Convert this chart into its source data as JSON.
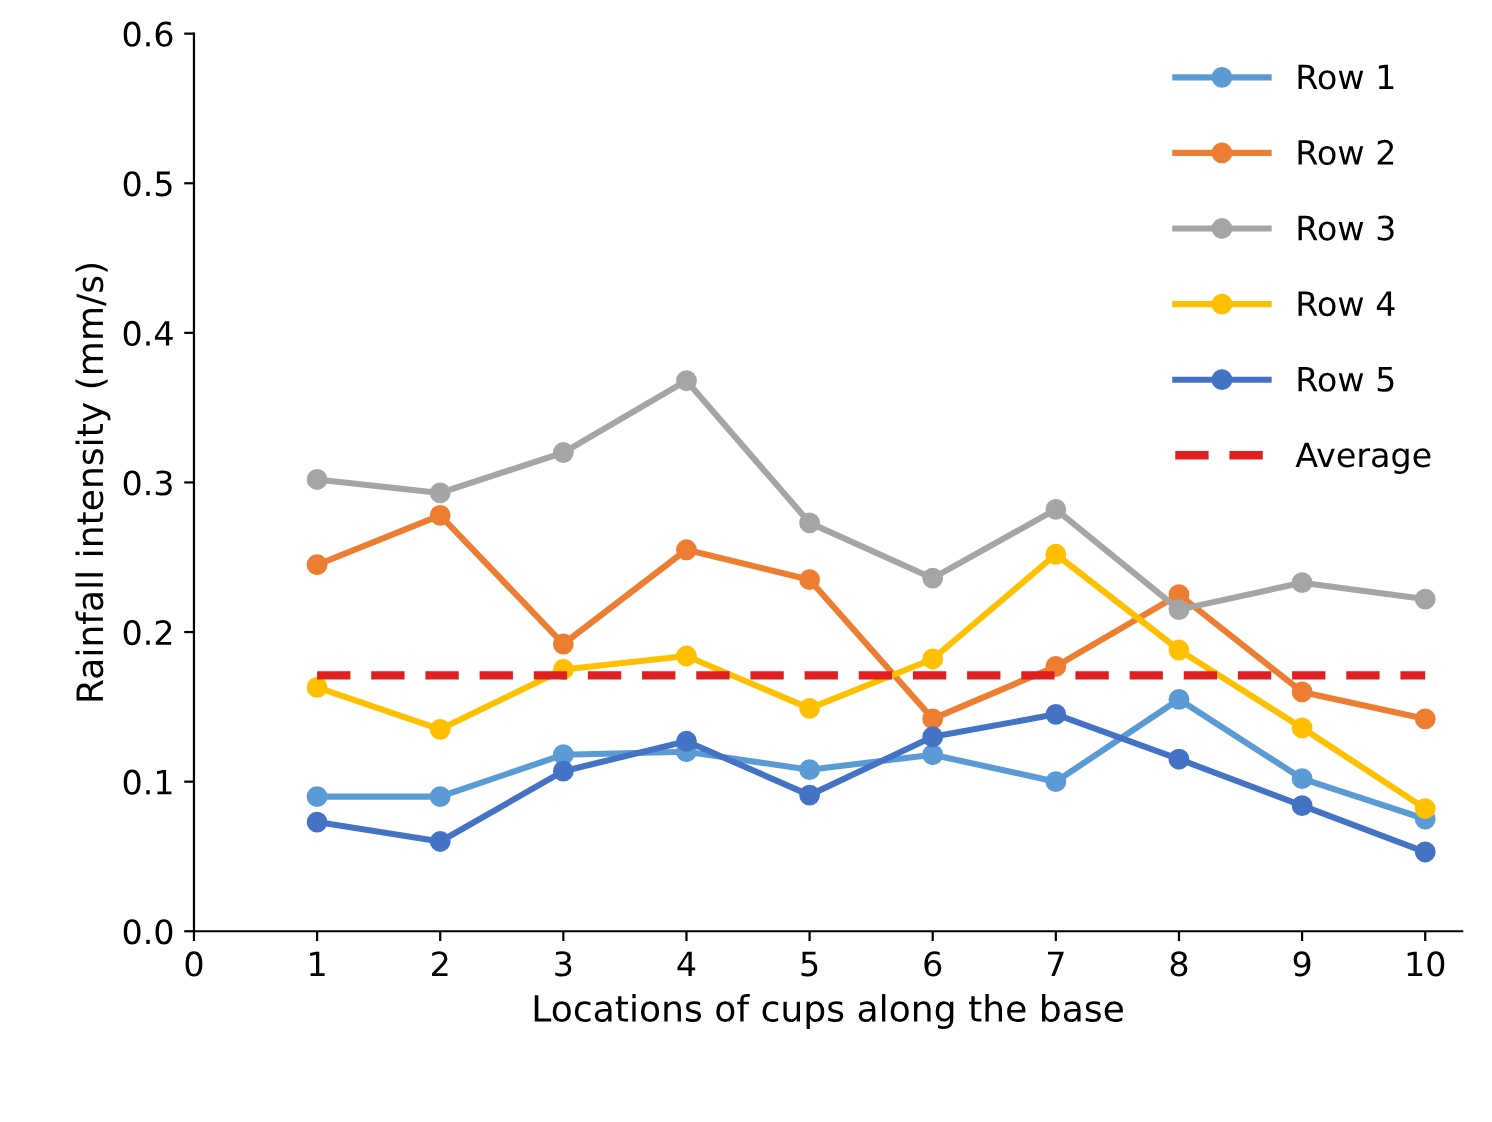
{
  "chart_data": {
    "type": "line",
    "xlabel": "Locations of cups along the base",
    "ylabel": "Rainfall intensity (mm/s)",
    "x": [
      1,
      2,
      3,
      4,
      5,
      6,
      7,
      8,
      9,
      10
    ],
    "series": [
      {
        "name": "Row 1",
        "color": "#5b9bd5",
        "values": [
          0.09,
          0.09,
          0.118,
          0.12,
          0.108,
          0.118,
          0.1,
          0.155,
          0.102,
          0.075
        ]
      },
      {
        "name": "Row 2",
        "color": "#ed7d31",
        "values": [
          0.245,
          0.278,
          0.192,
          0.255,
          0.235,
          0.142,
          0.177,
          0.225,
          0.16,
          0.142
        ]
      },
      {
        "name": "Row 3",
        "color": "#a5a5a5",
        "values": [
          0.302,
          0.293,
          0.32,
          0.368,
          0.273,
          0.236,
          0.282,
          0.215,
          0.233,
          0.222
        ]
      },
      {
        "name": "Row 4",
        "color": "#ffc000",
        "values": [
          0.163,
          0.135,
          0.175,
          0.184,
          0.149,
          0.182,
          0.252,
          0.188,
          0.136,
          0.082
        ]
      },
      {
        "name": "Row 5",
        "color": "#4472c4",
        "values": [
          0.073,
          0.06,
          0.107,
          0.127,
          0.091,
          0.13,
          0.145,
          0.115,
          0.084,
          0.053
        ]
      },
      {
        "name": "Average",
        "color": "#e02020",
        "line_style": "dashed",
        "marker": "none",
        "values": [
          0.171,
          0.171,
          0.171,
          0.171,
          0.171,
          0.171,
          0.171,
          0.171,
          0.171,
          0.171
        ]
      }
    ],
    "xlim": [
      0,
      10.3
    ],
    "xticks": [
      0,
      1,
      2,
      3,
      4,
      5,
      6,
      7,
      8,
      9,
      10
    ],
    "ylim": [
      0,
      0.6
    ],
    "yticks": [
      {
        "value": 0,
        "label": "0.0"
      },
      {
        "value": 0.1,
        "label": "0.1"
      },
      {
        "value": 0.2,
        "label": "0.2"
      },
      {
        "value": 0.3,
        "label": "0.3"
      },
      {
        "value": 0.4,
        "label": "0.4"
      },
      {
        "value": 0.5,
        "label": "0.5"
      },
      {
        "value": 0.6,
        "label": "0.6"
      }
    ],
    "grid": false,
    "legend": "top right",
    "marker": "circle",
    "line_style": "solid"
  }
}
